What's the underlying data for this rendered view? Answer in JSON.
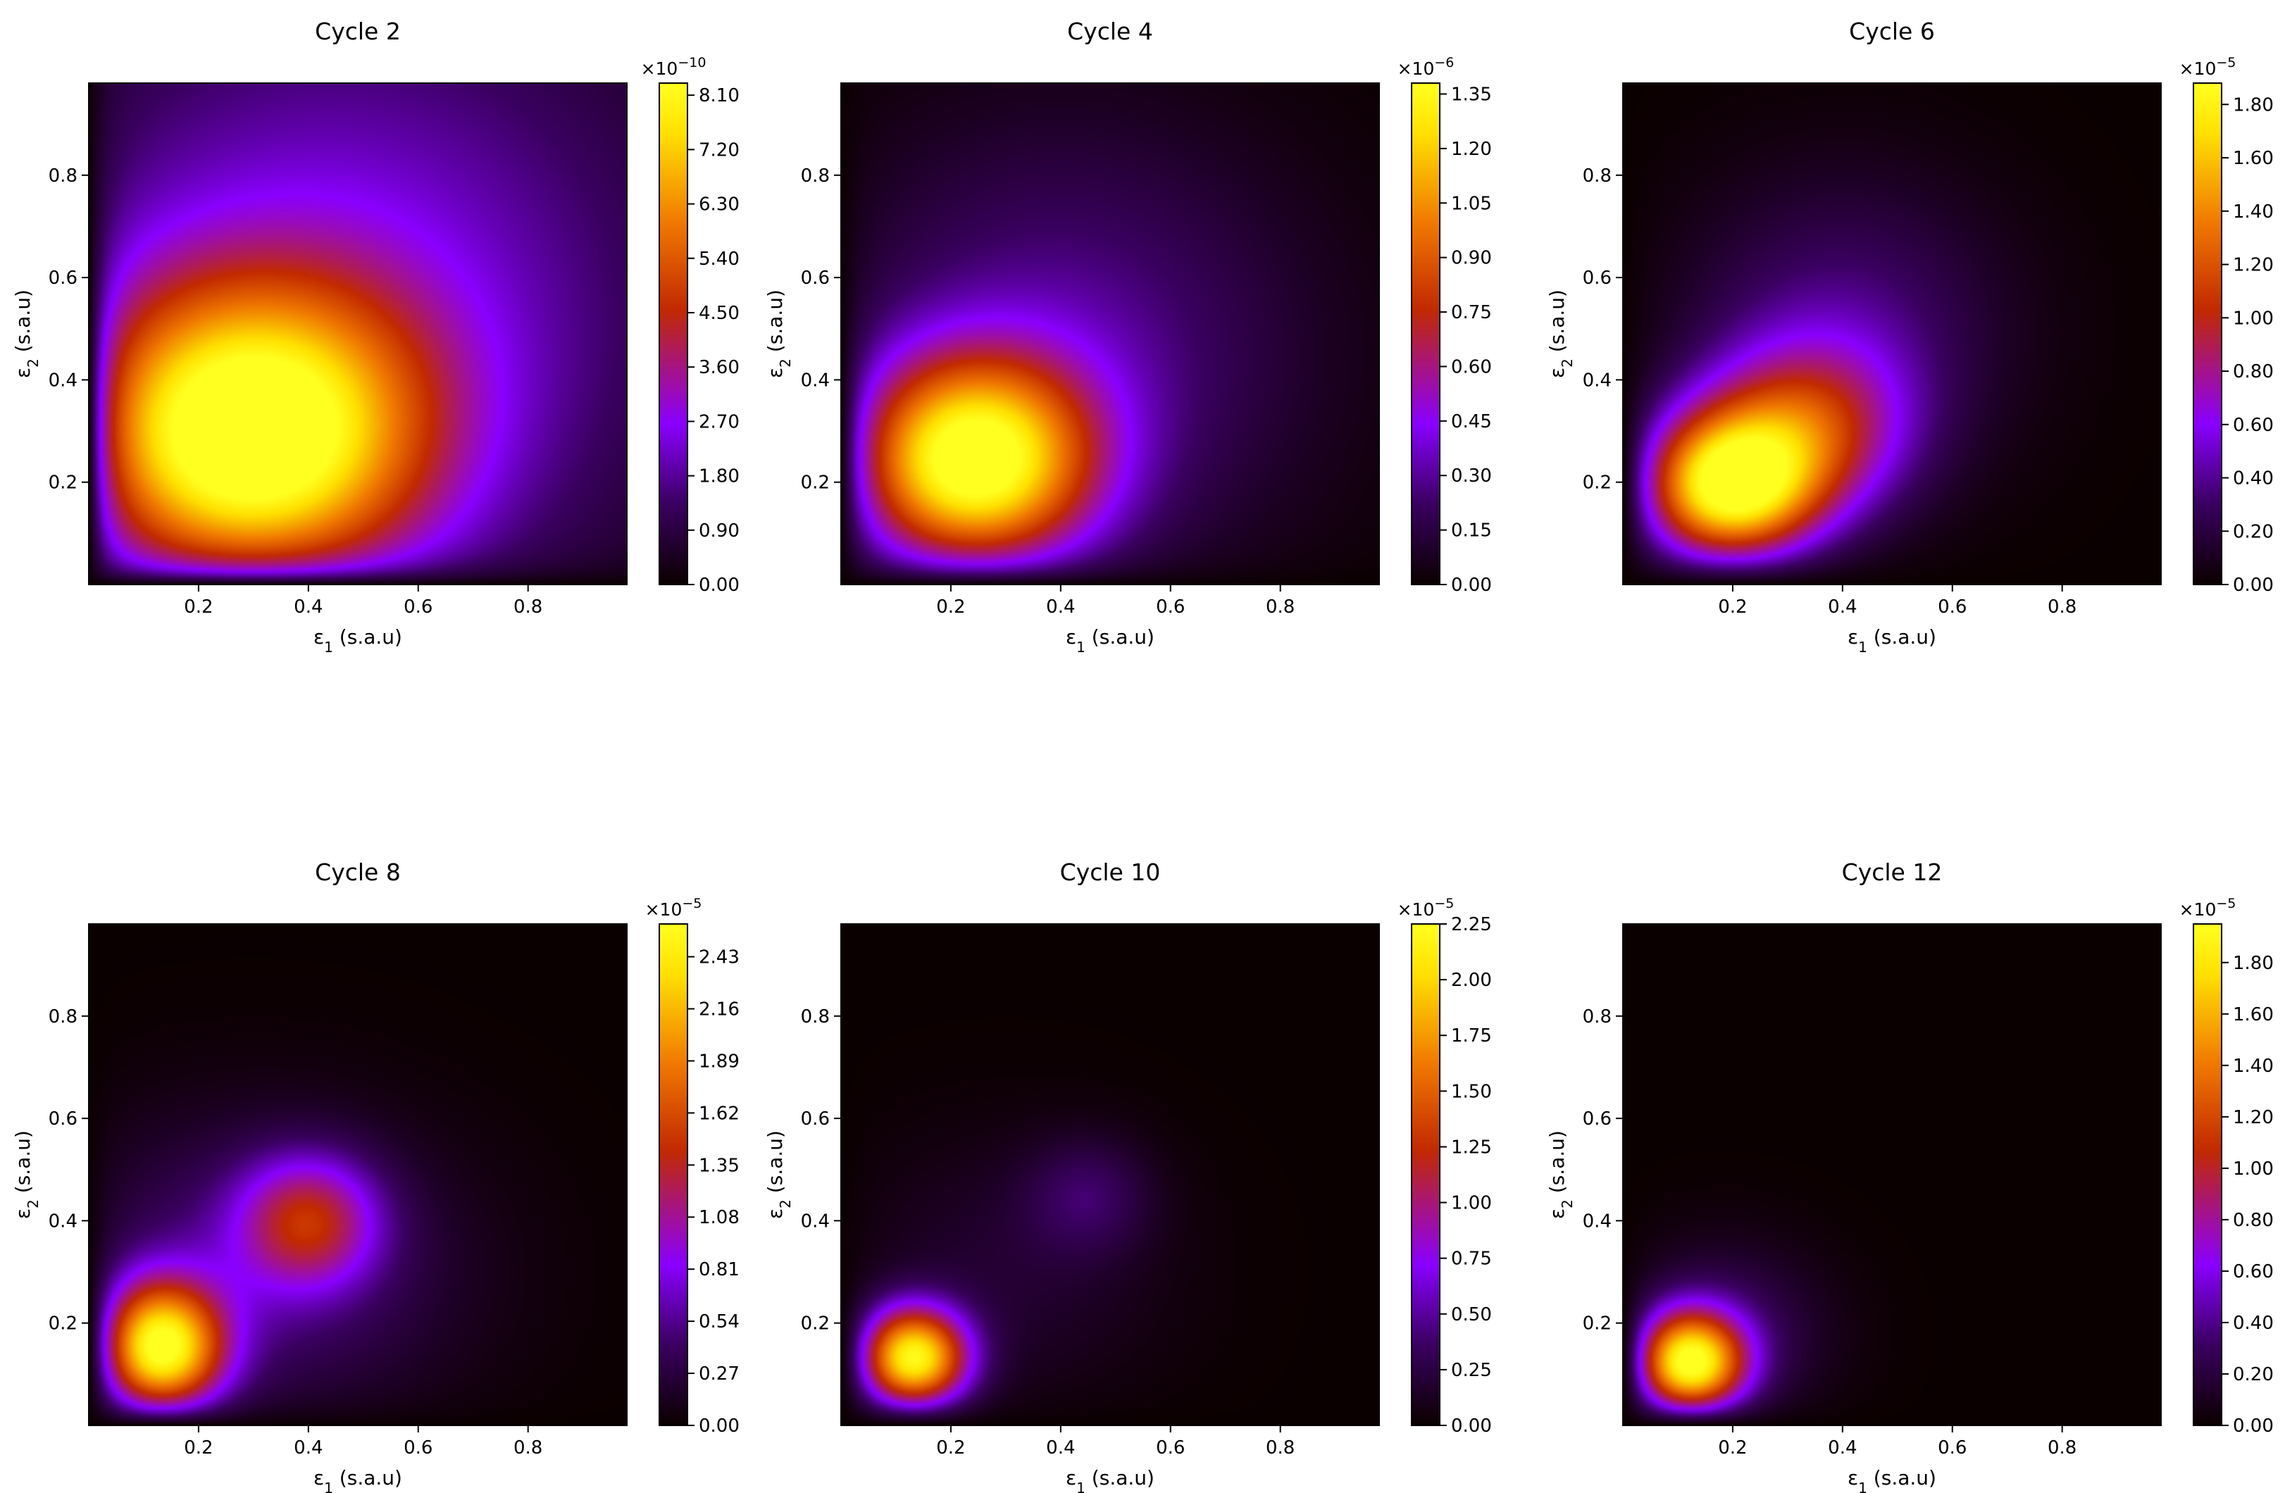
{
  "colors": {
    "colormap": [
      "#0b0000",
      "#3a0060",
      "#8a00ff",
      "#c22a00",
      "#f07800",
      "#ffe000",
      "#ffff20"
    ],
    "frame": "#000000"
  },
  "axes_shared": {
    "xlabel": {
      "symbol": "ε",
      "sub": "1",
      "unit": " (s.a.u)"
    },
    "ylabel": {
      "symbol": "ε",
      "sub": "2",
      "unit": " (s.a.u)"
    },
    "xticks": [
      "0.2",
      "0.4",
      "0.6",
      "0.8"
    ],
    "yticks": [
      "0.2",
      "0.4",
      "0.6",
      "0.8"
    ]
  },
  "chart_data": [
    {
      "type": "heatmap",
      "title": "Cycle 2",
      "xlim": [
        0,
        0.98
      ],
      "ylim": [
        0,
        0.98
      ],
      "colorbar": {
        "base": "×10",
        "exponent": "−10",
        "ticks": [
          "0.00",
          "0.90",
          "1.80",
          "2.70",
          "3.60",
          "4.50",
          "5.40",
          "6.30",
          "7.20",
          "8.10"
        ],
        "vmax": 8.3
      },
      "peaks": [
        {
          "x": 0.29,
          "y": 0.29,
          "amp": 8.1,
          "sx": 0.22,
          "sy": 0.2
        },
        {
          "x": 0.45,
          "y": 0.55,
          "amp": 2.5,
          "sx": 0.45,
          "sy": 0.45
        }
      ]
    },
    {
      "type": "heatmap",
      "title": "Cycle 4",
      "xlim": [
        0,
        0.98
      ],
      "ylim": [
        0,
        0.98
      ],
      "colorbar": {
        "base": "×10",
        "exponent": "−6",
        "ticks": [
          "0.00",
          "0.15",
          "0.30",
          "0.45",
          "0.60",
          "0.75",
          "0.90",
          "1.05",
          "1.20",
          "1.35"
        ],
        "vmax": 1.38
      },
      "peaks": [
        {
          "x": 0.24,
          "y": 0.24,
          "amp": 1.35,
          "sx": 0.15,
          "sy": 0.14
        },
        {
          "x": 0.4,
          "y": 0.45,
          "amp": 0.3,
          "sx": 0.3,
          "sy": 0.3
        }
      ]
    },
    {
      "type": "heatmap",
      "title": "Cycle 6",
      "xlim": [
        0,
        0.98
      ],
      "ylim": [
        0,
        0.98
      ],
      "colorbar": {
        "base": "×10",
        "exponent": "−5",
        "ticks": [
          "0.00",
          "0.20",
          "0.40",
          "0.60",
          "0.80",
          "1.00",
          "1.20",
          "1.40",
          "1.60",
          "1.80"
        ],
        "vmax": 1.88
      },
      "peaks": [
        {
          "x": 0.19,
          "y": 0.19,
          "amp": 1.8,
          "sx": 0.11,
          "sy": 0.1
        },
        {
          "x": 0.33,
          "y": 0.3,
          "amp": 0.9,
          "sx": 0.13,
          "sy": 0.12
        },
        {
          "x": 0.4,
          "y": 0.5,
          "amp": 0.35,
          "sx": 0.2,
          "sy": 0.2
        }
      ]
    },
    {
      "type": "heatmap",
      "title": "Cycle 8",
      "xlim": [
        0,
        0.98
      ],
      "ylim": [
        0,
        0.98
      ],
      "colorbar": {
        "base": "×10",
        "exponent": "−5",
        "ticks": [
          "0.00",
          "0.27",
          "0.54",
          "0.81",
          "1.08",
          "1.35",
          "1.62",
          "1.89",
          "2.16",
          "2.43"
        ],
        "vmax": 2.6
      },
      "peaks": [
        {
          "x": 0.13,
          "y": 0.15,
          "amp": 2.5,
          "sx": 0.08,
          "sy": 0.09
        },
        {
          "x": 0.4,
          "y": 0.4,
          "amp": 1.1,
          "sx": 0.09,
          "sy": 0.09
        },
        {
          "x": 0.3,
          "y": 0.3,
          "amp": 0.5,
          "sx": 0.25,
          "sy": 0.2
        }
      ]
    },
    {
      "type": "heatmap",
      "title": "Cycle 10",
      "xlim": [
        0,
        0.98
      ],
      "ylim": [
        0,
        0.98
      ],
      "colorbar": {
        "base": "×10",
        "exponent": "−5",
        "ticks": [
          "0.00",
          "0.25",
          "0.50",
          "0.75",
          "1.00",
          "1.25",
          "1.50",
          "1.75",
          "2.00",
          "2.25"
        ],
        "vmax": 2.25
      },
      "peaks": [
        {
          "x": 0.13,
          "y": 0.13,
          "amp": 2.2,
          "sx": 0.07,
          "sy": 0.07
        },
        {
          "x": 0.45,
          "y": 0.45,
          "amp": 0.3,
          "sx": 0.08,
          "sy": 0.08
        },
        {
          "x": 0.3,
          "y": 0.3,
          "amp": 0.18,
          "sx": 0.2,
          "sy": 0.18
        }
      ]
    },
    {
      "type": "heatmap",
      "title": "Cycle 12",
      "xlim": [
        0,
        0.98
      ],
      "ylim": [
        0,
        0.98
      ],
      "colorbar": {
        "base": "×10",
        "exponent": "−5",
        "ticks": [
          "0.00",
          "0.20",
          "0.40",
          "0.60",
          "0.80",
          "1.00",
          "1.20",
          "1.40",
          "1.60",
          "1.80"
        ],
        "vmax": 1.95
      },
      "peaks": [
        {
          "x": 0.12,
          "y": 0.12,
          "amp": 1.9,
          "sx": 0.07,
          "sy": 0.07
        },
        {
          "x": 0.18,
          "y": 0.18,
          "amp": 0.3,
          "sx": 0.13,
          "sy": 0.12
        }
      ]
    }
  ]
}
